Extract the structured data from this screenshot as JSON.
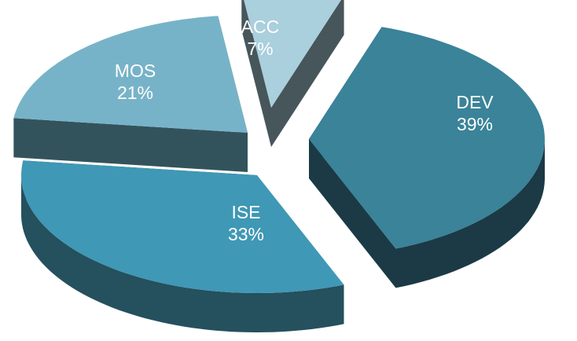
{
  "chart_data": {
    "type": "pie",
    "title": "",
    "style": "3d-exploded",
    "slices": [
      {
        "label": "DEV",
        "value": 39,
        "value_label": "39%",
        "top_color": "#3a8399",
        "side_color": "#1b3a45"
      },
      {
        "label": "ISE",
        "value": 33,
        "value_label": "33%",
        "top_color": "#3f98b5",
        "side_color": "#25505e"
      },
      {
        "label": "MOS",
        "value": 21,
        "value_label": "21%",
        "top_color": "#77b3c8",
        "side_color": "#33535c"
      },
      {
        "label": "ACC",
        "value": 7,
        "value_label": "7%",
        "top_color": "#aacfdd",
        "side_color": "#47565b"
      }
    ]
  }
}
